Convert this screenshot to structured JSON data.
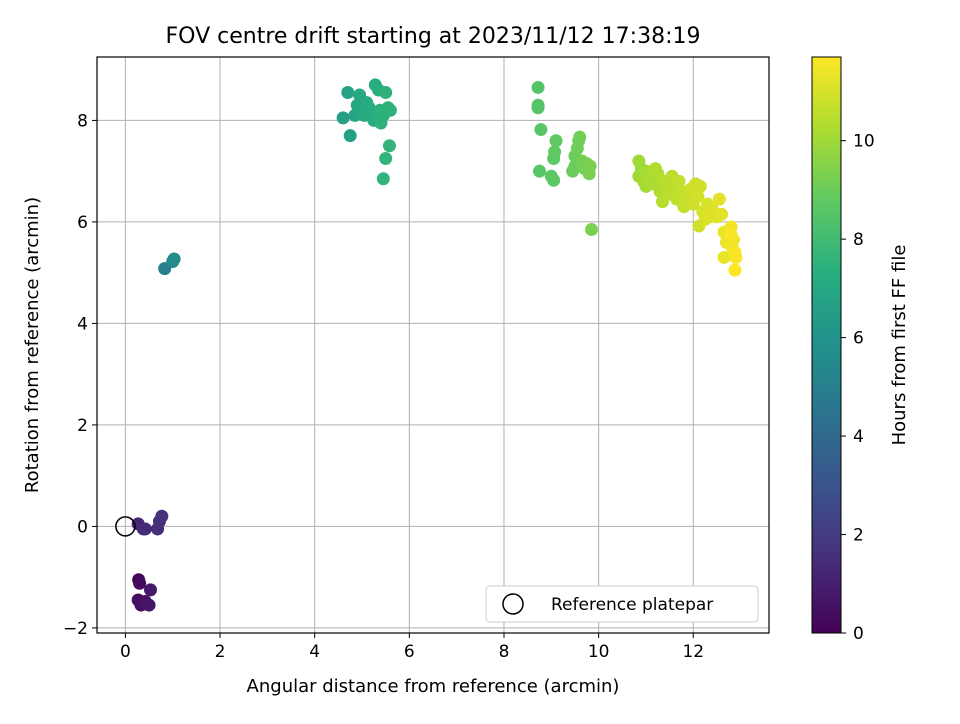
{
  "chart_data": {
    "type": "scatter",
    "title": "FOV centre drift starting at 2023/11/12 17:38:19",
    "xlabel": "Angular distance from reference (arcmin)",
    "ylabel": "Rotation from reference (arcmin)",
    "xlim": [
      -0.6,
      13.6
    ],
    "ylim": [
      -2.1,
      9.25
    ],
    "xticks": [
      0,
      2,
      4,
      6,
      8,
      10,
      12
    ],
    "yticks": [
      -2,
      0,
      2,
      4,
      6,
      8
    ],
    "grid": true,
    "colormap": "viridis",
    "colorbar": {
      "label": "Hours from first FF file",
      "range": [
        0,
        11.7
      ],
      "ticks": [
        0,
        2,
        4,
        6,
        8,
        10
      ]
    },
    "legend": {
      "placement": "lower-right",
      "entries": [
        "Reference platepar"
      ]
    },
    "reference_point": {
      "name": "Reference platepar",
      "x": 0,
      "y": 0,
      "marker": "open-circle"
    },
    "series": [
      {
        "name": "",
        "points": [
          {
            "x": 0.28,
            "y": -1.05,
            "c": 0.2
          },
          {
            "x": 0.3,
            "y": -1.12,
            "c": 0.3
          },
          {
            "x": 0.27,
            "y": -1.45,
            "c": 0.4
          },
          {
            "x": 0.33,
            "y": -1.55,
            "c": 0.5
          },
          {
            "x": 0.42,
            "y": -1.48,
            "c": 0.6
          },
          {
            "x": 0.5,
            "y": -1.55,
            "c": 0.7
          },
          {
            "x": 0.53,
            "y": -1.25,
            "c": 0.8
          },
          {
            "x": 0.27,
            "y": 0.05,
            "c": 1.2
          },
          {
            "x": 0.38,
            "y": -0.05,
            "c": 1.3
          },
          {
            "x": 0.42,
            "y": -0.05,
            "c": 1.4
          },
          {
            "x": 0.68,
            "y": -0.05,
            "c": 1.5
          },
          {
            "x": 0.72,
            "y": 0.1,
            "c": 1.6
          },
          {
            "x": 0.77,
            "y": 0.2,
            "c": 1.7
          },
          {
            "x": 0.83,
            "y": 5.08,
            "c": 5.0
          },
          {
            "x": 1.0,
            "y": 5.22,
            "c": 5.5
          },
          {
            "x": 1.03,
            "y": 5.27,
            "c": 5.6
          },
          {
            "x": 4.6,
            "y": 8.05,
            "c": 6.6
          },
          {
            "x": 4.7,
            "y": 8.55,
            "c": 6.7
          },
          {
            "x": 4.75,
            "y": 7.7,
            "c": 6.6
          },
          {
            "x": 4.85,
            "y": 8.1,
            "c": 6.8
          },
          {
            "x": 4.9,
            "y": 8.3,
            "c": 6.9
          },
          {
            "x": 4.95,
            "y": 8.5,
            "c": 7.0
          },
          {
            "x": 5.0,
            "y": 8.2,
            "c": 7.0
          },
          {
            "x": 5.05,
            "y": 8.1,
            "c": 7.1
          },
          {
            "x": 5.1,
            "y": 8.35,
            "c": 7.1
          },
          {
            "x": 5.15,
            "y": 8.25,
            "c": 7.2
          },
          {
            "x": 5.2,
            "y": 8.15,
            "c": 7.2
          },
          {
            "x": 5.25,
            "y": 8.0,
            "c": 7.2
          },
          {
            "x": 5.28,
            "y": 8.7,
            "c": 7.3
          },
          {
            "x": 5.3,
            "y": 8.05,
            "c": 7.3
          },
          {
            "x": 5.35,
            "y": 8.6,
            "c": 7.3
          },
          {
            "x": 5.38,
            "y": 8.2,
            "c": 7.4
          },
          {
            "x": 5.4,
            "y": 7.95,
            "c": 7.4
          },
          {
            "x": 5.45,
            "y": 8.1,
            "c": 7.4
          },
          {
            "x": 5.5,
            "y": 8.55,
            "c": 7.5
          },
          {
            "x": 5.55,
            "y": 8.25,
            "c": 7.5
          },
          {
            "x": 5.6,
            "y": 8.2,
            "c": 7.5
          },
          {
            "x": 5.58,
            "y": 7.5,
            "c": 7.6
          },
          {
            "x": 5.5,
            "y": 7.25,
            "c": 7.6
          },
          {
            "x": 5.45,
            "y": 6.85,
            "c": 7.6
          },
          {
            "x": 8.72,
            "y": 8.65,
            "c": 8.5
          },
          {
            "x": 8.72,
            "y": 8.3,
            "c": 8.5
          },
          {
            "x": 8.72,
            "y": 8.25,
            "c": 8.5
          },
          {
            "x": 8.78,
            "y": 7.82,
            "c": 8.6
          },
          {
            "x": 8.75,
            "y": 7.0,
            "c": 8.6
          },
          {
            "x": 9.0,
            "y": 6.9,
            "c": 8.7
          },
          {
            "x": 9.05,
            "y": 6.82,
            "c": 8.7
          },
          {
            "x": 9.05,
            "y": 7.25,
            "c": 8.7
          },
          {
            "x": 9.07,
            "y": 7.38,
            "c": 8.8
          },
          {
            "x": 9.1,
            "y": 7.6,
            "c": 8.8
          },
          {
            "x": 9.45,
            "y": 7.0,
            "c": 9.0
          },
          {
            "x": 9.5,
            "y": 7.1,
            "c": 9.0
          },
          {
            "x": 9.5,
            "y": 7.3,
            "c": 9.0
          },
          {
            "x": 9.55,
            "y": 7.45,
            "c": 9.1
          },
          {
            "x": 9.58,
            "y": 7.6,
            "c": 9.1
          },
          {
            "x": 9.6,
            "y": 7.67,
            "c": 9.1
          },
          {
            "x": 9.65,
            "y": 7.2,
            "c": 9.2
          },
          {
            "x": 9.7,
            "y": 7.05,
            "c": 9.2
          },
          {
            "x": 9.75,
            "y": 7.15,
            "c": 9.2
          },
          {
            "x": 9.8,
            "y": 6.95,
            "c": 9.3
          },
          {
            "x": 9.82,
            "y": 7.1,
            "c": 9.3
          },
          {
            "x": 9.85,
            "y": 5.85,
            "c": 9.3
          },
          {
            "x": 10.85,
            "y": 7.2,
            "c": 10.0
          },
          {
            "x": 10.85,
            "y": 6.9,
            "c": 10.0
          },
          {
            "x": 10.9,
            "y": 7.05,
            "c": 10.0
          },
          {
            "x": 10.95,
            "y": 6.8,
            "c": 10.1
          },
          {
            "x": 11.0,
            "y": 7.0,
            "c": 10.1
          },
          {
            "x": 11.0,
            "y": 6.7,
            "c": 10.1
          },
          {
            "x": 11.05,
            "y": 6.9,
            "c": 10.2
          },
          {
            "x": 11.1,
            "y": 6.85,
            "c": 10.2
          },
          {
            "x": 11.15,
            "y": 6.75,
            "c": 10.2
          },
          {
            "x": 11.2,
            "y": 7.05,
            "c": 10.3
          },
          {
            "x": 11.25,
            "y": 6.95,
            "c": 10.3
          },
          {
            "x": 11.3,
            "y": 6.6,
            "c": 10.3
          },
          {
            "x": 11.35,
            "y": 6.4,
            "c": 10.4
          },
          {
            "x": 11.4,
            "y": 6.8,
            "c": 10.4
          },
          {
            "x": 11.45,
            "y": 6.7,
            "c": 10.4
          },
          {
            "x": 11.5,
            "y": 6.55,
            "c": 10.5
          },
          {
            "x": 11.55,
            "y": 6.9,
            "c": 10.5
          },
          {
            "x": 11.6,
            "y": 6.65,
            "c": 10.5
          },
          {
            "x": 11.65,
            "y": 6.45,
            "c": 10.6
          },
          {
            "x": 11.7,
            "y": 6.8,
            "c": 10.6
          },
          {
            "x": 11.75,
            "y": 6.6,
            "c": 10.6
          },
          {
            "x": 11.8,
            "y": 6.3,
            "c": 10.7
          },
          {
            "x": 11.85,
            "y": 6.55,
            "c": 10.7
          },
          {
            "x": 11.9,
            "y": 6.4,
            "c": 10.7
          },
          {
            "x": 11.95,
            "y": 6.65,
            "c": 10.8
          },
          {
            "x": 12.0,
            "y": 6.35,
            "c": 10.8
          },
          {
            "x": 12.05,
            "y": 6.75,
            "c": 10.8
          },
          {
            "x": 12.1,
            "y": 6.5,
            "c": 10.9
          },
          {
            "x": 12.12,
            "y": 5.92,
            "c": 10.9
          },
          {
            "x": 12.15,
            "y": 6.7,
            "c": 10.9
          },
          {
            "x": 12.2,
            "y": 6.2,
            "c": 11.0
          },
          {
            "x": 12.25,
            "y": 6.05,
            "c": 11.0
          },
          {
            "x": 12.3,
            "y": 6.35,
            "c": 11.0
          },
          {
            "x": 12.35,
            "y": 6.1,
            "c": 11.1
          },
          {
            "x": 12.4,
            "y": 6.25,
            "c": 11.1
          },
          {
            "x": 12.5,
            "y": 6.1,
            "c": 11.1
          },
          {
            "x": 12.55,
            "y": 6.45,
            "c": 11.2
          },
          {
            "x": 12.6,
            "y": 6.15,
            "c": 11.2
          },
          {
            "x": 12.65,
            "y": 5.8,
            "c": 11.3
          },
          {
            "x": 12.65,
            "y": 5.3,
            "c": 11.3
          },
          {
            "x": 12.7,
            "y": 5.6,
            "c": 11.4
          },
          {
            "x": 12.75,
            "y": 5.75,
            "c": 11.4
          },
          {
            "x": 12.8,
            "y": 5.9,
            "c": 11.5
          },
          {
            "x": 12.82,
            "y": 5.5,
            "c": 11.5
          },
          {
            "x": 12.85,
            "y": 5.65,
            "c": 11.5
          },
          {
            "x": 12.88,
            "y": 5.4,
            "c": 11.6
          },
          {
            "x": 12.9,
            "y": 5.3,
            "c": 11.6
          },
          {
            "x": 12.88,
            "y": 5.05,
            "c": 11.7
          },
          {
            "x": 12.8,
            "y": 5.75,
            "c": 11.6
          }
        ]
      }
    ]
  }
}
